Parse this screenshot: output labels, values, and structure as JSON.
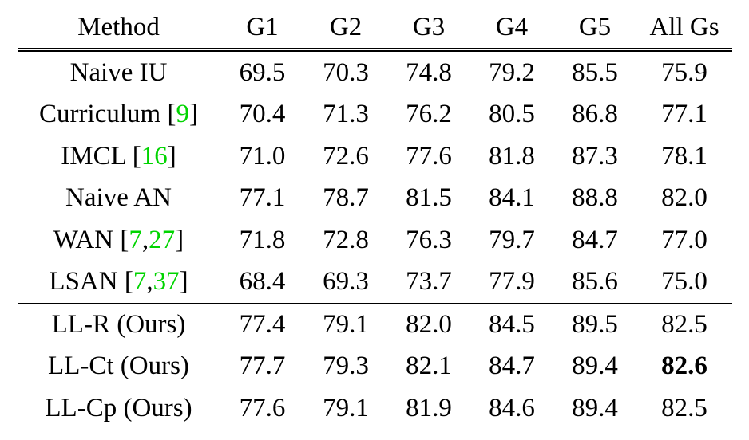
{
  "table": {
    "headers": [
      "Method",
      "G1",
      "G2",
      "G3",
      "G4",
      "G5",
      "All Gs"
    ],
    "rows": [
      {
        "method": "Naive IU",
        "cites": [],
        "values": [
          "69.5",
          "70.3",
          "74.8",
          "79.2",
          "85.5",
          "75.9"
        ]
      },
      {
        "method": "Curriculum",
        "cites": [
          "9"
        ],
        "values": [
          "70.4",
          "71.3",
          "76.2",
          "80.5",
          "86.8",
          "77.1"
        ]
      },
      {
        "method": "IMCL",
        "cites": [
          "16"
        ],
        "values": [
          "71.0",
          "72.6",
          "77.6",
          "81.8",
          "87.3",
          "78.1"
        ]
      },
      {
        "method": "Naive AN",
        "cites": [],
        "values": [
          "77.1",
          "78.7",
          "81.5",
          "84.1",
          "88.8",
          "82.0"
        ]
      },
      {
        "method": "WAN",
        "cites": [
          "7",
          "27"
        ],
        "values": [
          "71.8",
          "72.8",
          "76.3",
          "79.7",
          "84.7",
          "77.0"
        ]
      },
      {
        "method": "LSAN",
        "cites": [
          "7",
          "37"
        ],
        "values": [
          "68.4",
          "69.3",
          "73.7",
          "77.9",
          "85.6",
          "75.0"
        ]
      },
      {
        "method": "LL-R (Ours)",
        "cites": [],
        "values": [
          "77.4",
          "79.1",
          "82.0",
          "84.5",
          "89.5",
          "82.5"
        ]
      },
      {
        "method": "LL-Ct (Ours)",
        "cites": [],
        "values": [
          "77.7",
          "79.3",
          "82.1",
          "84.7",
          "89.4",
          "82.6"
        ]
      },
      {
        "method": "LL-Cp (Ours)",
        "cites": [],
        "values": [
          "77.6",
          "79.1",
          "81.9",
          "84.6",
          "89.4",
          "82.5"
        ]
      }
    ],
    "bold_cell": {
      "row": 7,
      "col": 5
    },
    "group_break_before_row": 6,
    "colors": {
      "text": "#000000",
      "citation": "#00d400",
      "background": "#ffffff"
    }
  }
}
